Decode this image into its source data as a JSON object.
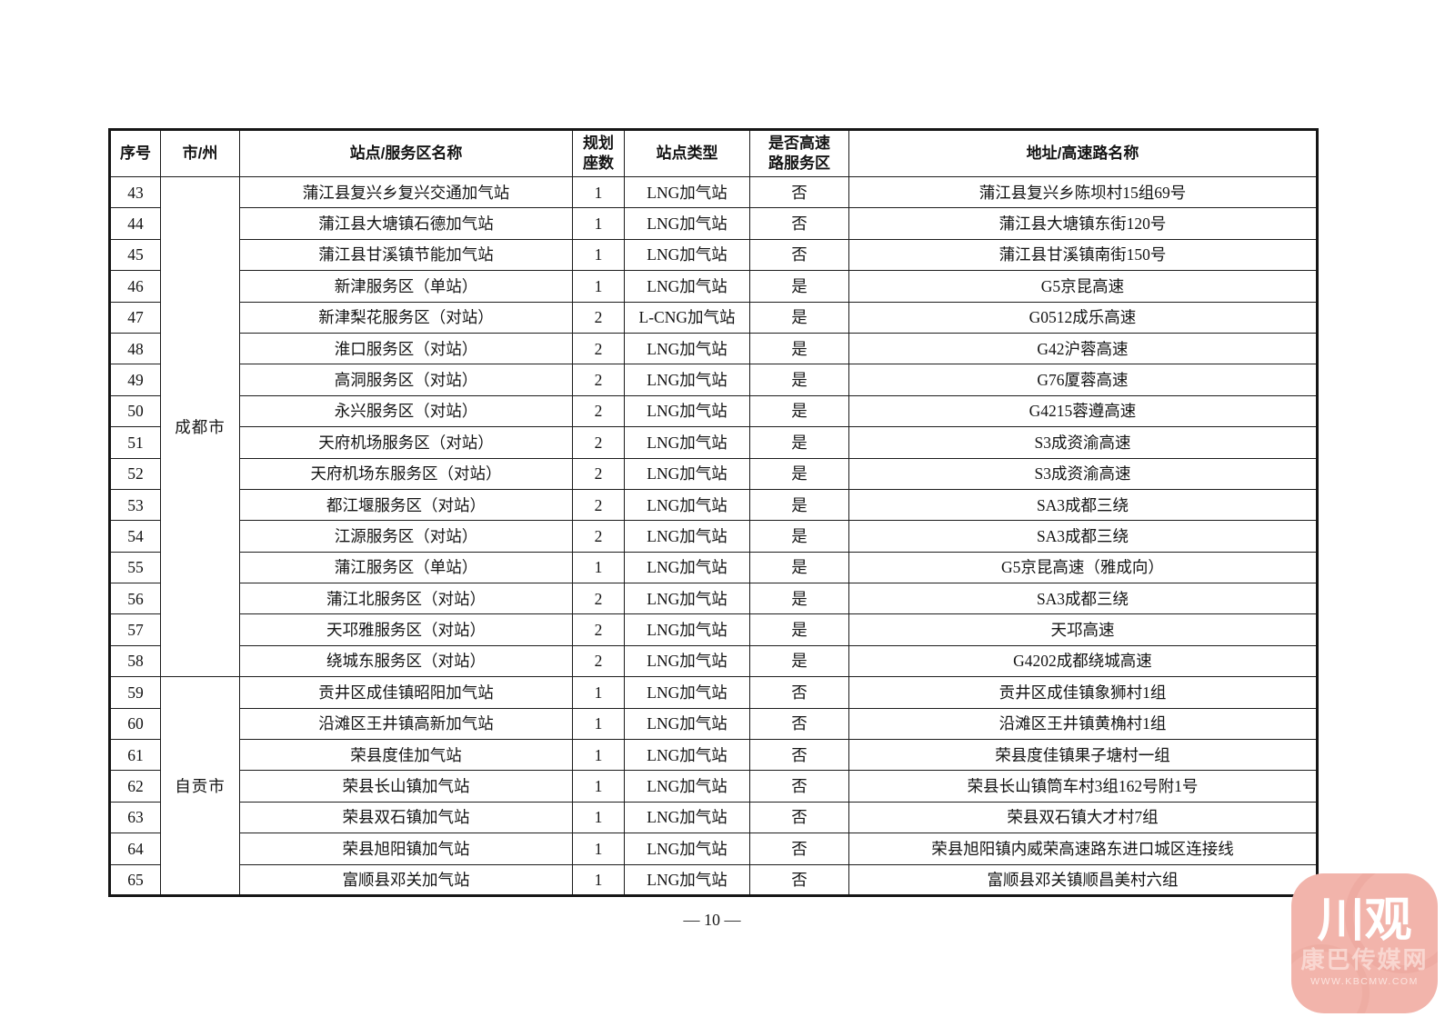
{
  "table": {
    "headers": [
      "序号",
      "市/州",
      "站点/服务区名称",
      "规划\n座数",
      "站点类型",
      "是否高速\n路服务区",
      "地址/高速路名称"
    ],
    "rows": [
      {
        "no": "43",
        "city": "成都市",
        "city_rowspan": 16,
        "name": "蒲江县复兴乡复兴交通加气站",
        "count": "1",
        "type": "LNG加气站",
        "is_highway": "否",
        "address": "蒲江县复兴乡陈坝村15组69号"
      },
      {
        "no": "44",
        "name": "蒲江县大塘镇石德加气站",
        "count": "1",
        "type": "LNG加气站",
        "is_highway": "否",
        "address": "蒲江县大塘镇东街120号"
      },
      {
        "no": "45",
        "name": "蒲江县甘溪镇节能加气站",
        "count": "1",
        "type": "LNG加气站",
        "is_highway": "否",
        "address": "蒲江县甘溪镇南街150号"
      },
      {
        "no": "46",
        "name": "新津服务区（单站）",
        "count": "1",
        "type": "LNG加气站",
        "is_highway": "是",
        "address": "G5京昆高速"
      },
      {
        "no": "47",
        "name": "新津梨花服务区（对站）",
        "count": "2",
        "type": "L-CNG加气站",
        "is_highway": "是",
        "address": "G0512成乐高速"
      },
      {
        "no": "48",
        "name": "淮口服务区（对站）",
        "count": "2",
        "type": "LNG加气站",
        "is_highway": "是",
        "address": "G42沪蓉高速"
      },
      {
        "no": "49",
        "name": "高洞服务区（对站）",
        "count": "2",
        "type": "LNG加气站",
        "is_highway": "是",
        "address": "G76厦蓉高速"
      },
      {
        "no": "50",
        "name": "永兴服务区（对站）",
        "count": "2",
        "type": "LNG加气站",
        "is_highway": "是",
        "address": "G4215蓉遵高速"
      },
      {
        "no": "51",
        "name": "天府机场服务区（对站）",
        "count": "2",
        "type": "LNG加气站",
        "is_highway": "是",
        "address": "S3成资渝高速"
      },
      {
        "no": "52",
        "name": "天府机场东服务区（对站）",
        "count": "2",
        "type": "LNG加气站",
        "is_highway": "是",
        "address": "S3成资渝高速"
      },
      {
        "no": "53",
        "name": "都江堰服务区（对站）",
        "count": "2",
        "type": "LNG加气站",
        "is_highway": "是",
        "address": "SA3成都三绕"
      },
      {
        "no": "54",
        "name": "江源服务区（对站）",
        "count": "2",
        "type": "LNG加气站",
        "is_highway": "是",
        "address": "SA3成都三绕"
      },
      {
        "no": "55",
        "name": "蒲江服务区（单站）",
        "count": "1",
        "type": "LNG加气站",
        "is_highway": "是",
        "address": "G5京昆高速（雅成向）"
      },
      {
        "no": "56",
        "name": "蒲江北服务区（对站）",
        "count": "2",
        "type": "LNG加气站",
        "is_highway": "是",
        "address": "SA3成都三绕"
      },
      {
        "no": "57",
        "name": "天邛雅服务区（对站）",
        "count": "2",
        "type": "LNG加气站",
        "is_highway": "是",
        "address": "天邛高速"
      },
      {
        "no": "58",
        "name": "绕城东服务区（对站）",
        "count": "2",
        "type": "LNG加气站",
        "is_highway": "是",
        "address": "G4202成都绕城高速"
      },
      {
        "no": "59",
        "city": "自贡市",
        "city_rowspan": 7,
        "name": "贡井区成佳镇昭阳加气站",
        "count": "1",
        "type": "LNG加气站",
        "is_highway": "否",
        "address": "贡井区成佳镇象狮村1组"
      },
      {
        "no": "60",
        "name": "沿滩区王井镇高新加气站",
        "count": "1",
        "type": "LNG加气站",
        "is_highway": "否",
        "address": "沿滩区王井镇黄桷村1组"
      },
      {
        "no": "61",
        "name": "荣县度佳加气站",
        "count": "1",
        "type": "LNG加气站",
        "is_highway": "否",
        "address": "荣县度佳镇果子塘村一组"
      },
      {
        "no": "62",
        "name": "荣县长山镇加气站",
        "count": "1",
        "type": "LNG加气站",
        "is_highway": "否",
        "address": "荣县长山镇筒车村3组162号附1号"
      },
      {
        "no": "63",
        "name": "荣县双石镇加气站",
        "count": "1",
        "type": "LNG加气站",
        "is_highway": "否",
        "address": "荣县双石镇大才村7组"
      },
      {
        "no": "64",
        "name": "荣县旭阳镇加气站",
        "count": "1",
        "type": "LNG加气站",
        "is_highway": "否",
        "address": "荣县旭阳镇内威荣高速路东进口城区连接线"
      },
      {
        "no": "65",
        "name": "富顺县邓关加气站",
        "count": "1",
        "type": "LNG加气站",
        "is_highway": "否",
        "address": "富顺县邓关镇顺昌美村六组"
      }
    ]
  },
  "footer": {
    "page_number": "— 10 —"
  },
  "watermark": {
    "title": "川观",
    "subtitle": "康巴传媒网",
    "url": "WWW.KBCMW.COM",
    "badge_color": "#f2b4ab"
  }
}
